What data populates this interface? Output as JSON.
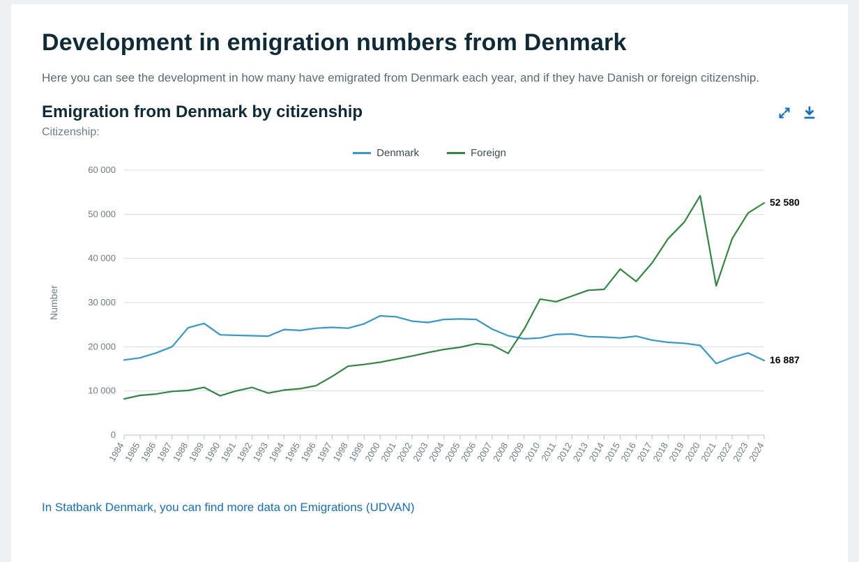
{
  "page": {
    "title": "Development in emigration numbers from Denmark",
    "intro": "Here you can see the development in how many have emigrated from Denmark each year, and if they have Danish or foreign citizenship."
  },
  "chart": {
    "type": "line",
    "title": "Emigration from Denmark by citizenship",
    "subtitle": "Citizenship:",
    "y_axis_label": "Number",
    "years": [
      1984,
      1985,
      1986,
      1987,
      1988,
      1989,
      1990,
      1991,
      1992,
      1993,
      1994,
      1995,
      1996,
      1997,
      1998,
      1999,
      2000,
      2001,
      2002,
      2003,
      2004,
      2005,
      2006,
      2007,
      2008,
      2009,
      2010,
      2011,
      2012,
      2013,
      2014,
      2015,
      2016,
      2017,
      2018,
      2019,
      2020,
      2021,
      2022,
      2023,
      2024
    ],
    "ylim": [
      0,
      60000
    ],
    "yticks": [
      0,
      10000,
      20000,
      30000,
      40000,
      50000,
      60000
    ],
    "ytick_labels": [
      "0",
      "10 000",
      "20 000",
      "30 000",
      "40 000",
      "50 000",
      "60 000"
    ],
    "grid_color": "#d9dce0",
    "axis_color": "#b8bec4",
    "text_color": "#6e7c82",
    "background_color": "#ffffff",
    "series": [
      {
        "name": "Denmark",
        "color": "#2f98d7",
        "line_width": 2.2,
        "values": [
          17000,
          17500,
          18600,
          20000,
          24300,
          25300,
          22700,
          22600,
          22500,
          22400,
          23900,
          23700,
          24200,
          24400,
          24200,
          25200,
          27000,
          26800,
          25800,
          25500,
          26200,
          26300,
          26200,
          24000,
          22500,
          21800,
          22000,
          22800,
          22900,
          22300,
          22200,
          22000,
          22400,
          21500,
          21000,
          20800,
          20300,
          16200,
          17600,
          18600,
          16887
        ],
        "end_label": "16 887"
      },
      {
        "name": "Foreign",
        "color": "#2a8a3e",
        "line_width": 2.2,
        "values": [
          8200,
          9000,
          9300,
          9900,
          10100,
          10800,
          8900,
          10000,
          10800,
          9500,
          10200,
          10500,
          11200,
          13300,
          15600,
          16000,
          16500,
          17200,
          17900,
          18700,
          19400,
          19900,
          20700,
          20400,
          18500,
          24000,
          30800,
          30200,
          31500,
          32800,
          33000,
          37600,
          34800,
          39000,
          44500,
          48200,
          54200,
          33800,
          44500,
          50300,
          52580
        ],
        "end_label": "52 580"
      }
    ],
    "end_label_fontsize": 14,
    "end_label_fontweight": 700,
    "end_label_color": "#000000",
    "title_fontsize": 24,
    "subtitle_fontsize": 16,
    "axis_fontsize": 14,
    "tick_fontsize": 13
  },
  "legend": {
    "items": [
      {
        "label": "Denmark",
        "color": "#2f98d7"
      },
      {
        "label": "Foreign",
        "color": "#2a8a3e"
      }
    ]
  },
  "actions": {
    "expand_tooltip": "Expand",
    "download_tooltip": "Download"
  },
  "footer": {
    "link_text": "In Statbank Denmark, you can find more data on Emigrations (UDVAN)"
  }
}
